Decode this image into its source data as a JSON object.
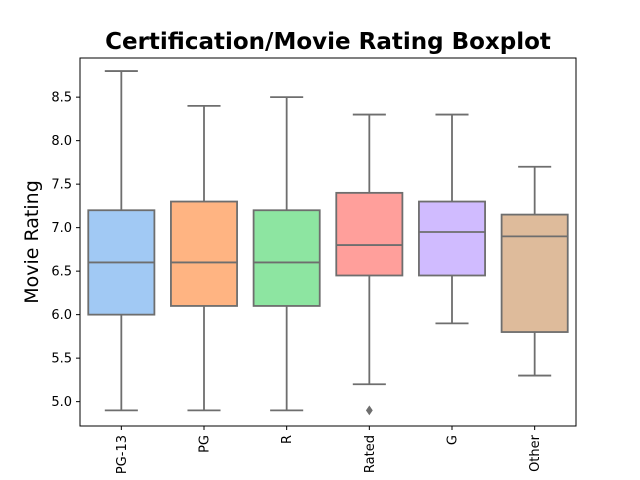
{
  "chart_data": {
    "type": "boxplot",
    "title": "Certification/Movie Rating Boxplot",
    "xlabel": "",
    "ylabel": "Movie Rating",
    "ylim": [
      4.72,
      8.95
    ],
    "yticks": [
      "5.0",
      "5.5",
      "6.0",
      "6.5",
      "7.0",
      "7.5",
      "8.0",
      "8.5"
    ],
    "grid": false,
    "categories": [
      "PG-13",
      "PG",
      "R",
      "Rated",
      "G",
      "Other"
    ],
    "boxes": [
      {
        "category": "PG-13",
        "color": "#a1c9f4",
        "whisker_low": 4.9,
        "q1": 6.0,
        "median": 6.6,
        "q3": 7.2,
        "whisker_high": 8.8,
        "outliers": []
      },
      {
        "category": "PG",
        "color": "#ffb482",
        "whisker_low": 4.9,
        "q1": 6.1,
        "median": 6.6,
        "q3": 7.3,
        "whisker_high": 8.4,
        "outliers": []
      },
      {
        "category": "R",
        "color": "#8de5a1",
        "whisker_low": 4.9,
        "q1": 6.1,
        "median": 6.6,
        "q3": 7.2,
        "whisker_high": 8.5,
        "outliers": []
      },
      {
        "category": "Rated",
        "color": "#ff9f9b",
        "whisker_low": 5.2,
        "q1": 6.45,
        "median": 6.8,
        "q3": 7.4,
        "whisker_high": 8.3,
        "outliers": [
          4.9
        ]
      },
      {
        "category": "G",
        "color": "#d0bbff",
        "whisker_low": 5.9,
        "q1": 6.45,
        "median": 6.95,
        "q3": 7.3,
        "whisker_high": 8.3,
        "outliers": []
      },
      {
        "category": "Other",
        "color": "#debb9b",
        "whisker_low": 5.3,
        "q1": 5.8,
        "median": 6.9,
        "q3": 7.15,
        "whisker_high": 7.7,
        "outliers": []
      }
    ],
    "line_color": "#6e6e6e"
  }
}
